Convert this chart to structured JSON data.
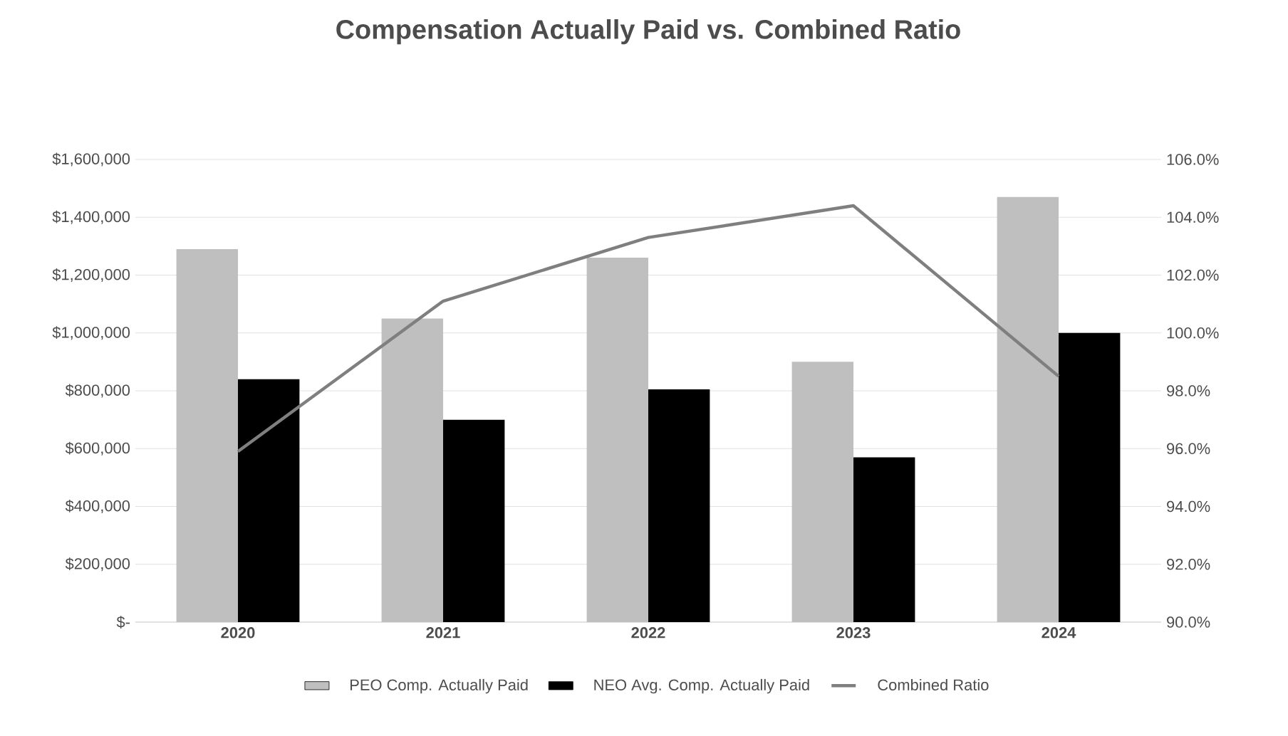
{
  "chart_data": {
    "type": "bar",
    "title": "Compensation Actually Paid vs. Combined Ratio",
    "categories": [
      "2020",
      "2021",
      "2022",
      "2023",
      "2024"
    ],
    "series": [
      {
        "name": "PEO Comp. Actually Paid",
        "color": "#bfbfbf",
        "values": [
          1290000,
          1050000,
          1260000,
          900000,
          1470000
        ]
      },
      {
        "name": "NEO Avg. Comp. Actually Paid",
        "color": "#000000",
        "values": [
          840000,
          700000,
          805000,
          570000,
          1000000
        ]
      },
      {
        "name": "Combined Ratio",
        "type": "line",
        "axis": "y2",
        "color": "#7f7f7f",
        "values": [
          95.9,
          101.1,
          103.3,
          104.4,
          98.5
        ]
      }
    ],
    "ylim": [
      0,
      1600000
    ],
    "yticks": [
      {
        "value": 0,
        "label": "$-"
      },
      {
        "value": 200000,
        "label": "$200,000"
      },
      {
        "value": 400000,
        "label": "$400,000"
      },
      {
        "value": 600000,
        "label": "$600,000"
      },
      {
        "value": 800000,
        "label": "$800,000"
      },
      {
        "value": 1000000,
        "label": "$1,000,000"
      },
      {
        "value": 1200000,
        "label": "$1,200,000"
      },
      {
        "value": 1400000,
        "label": "$1,400,000"
      },
      {
        "value": 1600000,
        "label": "$1,600,000"
      }
    ],
    "y2lim": [
      90,
      106
    ],
    "y2ticks": [
      {
        "value": 90,
        "label": "90.0%"
      },
      {
        "value": 92,
        "label": "92.0%"
      },
      {
        "value": 94,
        "label": "94.0%"
      },
      {
        "value": 96,
        "label": "96.0%"
      },
      {
        "value": 98,
        "label": "98.0%"
      },
      {
        "value": 100,
        "label": "100.0%"
      },
      {
        "value": 102,
        "label": "102.0%"
      },
      {
        "value": 104,
        "label": "104.0%"
      },
      {
        "value": 106,
        "label": "106.0%"
      }
    ],
    "grid": "y",
    "legend": "bottom"
  }
}
